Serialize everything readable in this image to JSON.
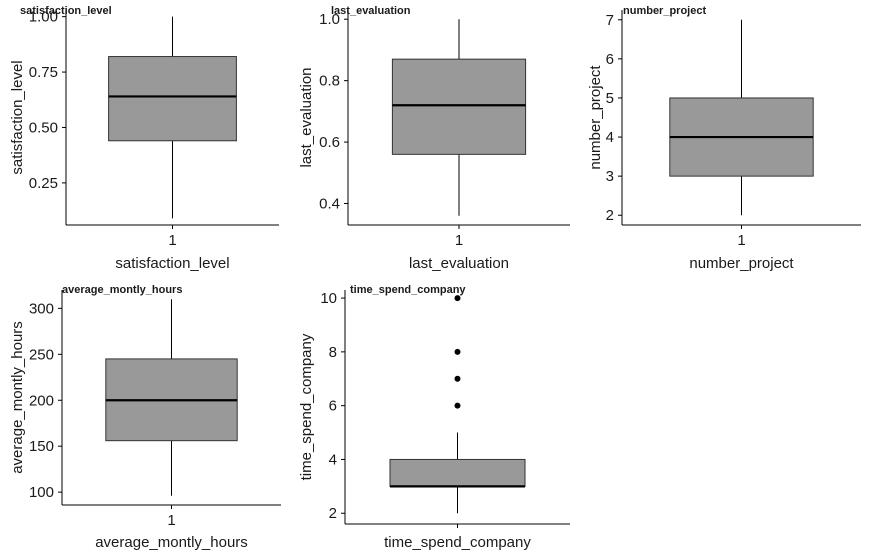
{
  "chart_data": [
    {
      "type": "box",
      "title": "satisfaction_level",
      "xlabel": "satisfaction_level",
      "ylabel": "satisfaction_level",
      "categories": [
        "1"
      ],
      "ylim": [
        0.06,
        1.03
      ],
      "yticks": [
        0.25,
        0.5,
        0.75,
        1.0
      ],
      "ytick_labels": [
        "0.25",
        "0.50",
        "0.75",
        "1.00"
      ],
      "box": {
        "lower_whisker": 0.09,
        "q1": 0.44,
        "median": 0.64,
        "q3": 0.82,
        "upper_whisker": 1.0
      },
      "outliers": []
    },
    {
      "type": "box",
      "title": "last_evaluation",
      "xlabel": "last_evaluation",
      "ylabel": "last_evaluation",
      "categories": [
        "1"
      ],
      "ylim": [
        0.33,
        1.03
      ],
      "yticks": [
        0.4,
        0.6,
        0.8,
        1.0
      ],
      "ytick_labels": [
        "0.4",
        "0.6",
        "0.8",
        "1.0"
      ],
      "box": {
        "lower_whisker": 0.36,
        "q1": 0.56,
        "median": 0.72,
        "q3": 0.87,
        "upper_whisker": 1.0
      },
      "outliers": []
    },
    {
      "type": "box",
      "title": "number_project",
      "xlabel": "number_project",
      "ylabel": "number_project",
      "categories": [
        "1"
      ],
      "ylim": [
        1.75,
        7.25
      ],
      "yticks": [
        2,
        3,
        4,
        5,
        6,
        7
      ],
      "ytick_labels": [
        "2",
        "3",
        "4",
        "5",
        "6",
        "7"
      ],
      "box": {
        "lower_whisker": 2,
        "q1": 3,
        "median": 4,
        "q3": 5,
        "upper_whisker": 7
      },
      "outliers": []
    },
    {
      "type": "box",
      "title": "average_montly_hours",
      "xlabel": "average_montly_hours",
      "ylabel": "average_montly_hours",
      "categories": [
        "1"
      ],
      "ylim": [
        86,
        320
      ],
      "yticks": [
        100,
        150,
        200,
        250,
        300
      ],
      "ytick_labels": [
        "100",
        "150",
        "200",
        "250",
        "300"
      ],
      "box": {
        "lower_whisker": 96,
        "q1": 156,
        "median": 200,
        "q3": 245,
        "upper_whisker": 310
      },
      "outliers": []
    },
    {
      "type": "box",
      "title": "time_spend_company",
      "xlabel": "time_spend_company",
      "ylabel": "time_spend_company",
      "categories": [
        ""
      ],
      "ylim": [
        1.6,
        10.3
      ],
      "yticks": [
        2,
        4,
        6,
        8,
        10
      ],
      "ytick_labels": [
        "2",
        "4",
        "6",
        "8",
        "10"
      ],
      "box": {
        "lower_whisker": 2,
        "q1": 3,
        "median": 3,
        "q3": 4,
        "upper_whisker": 5
      },
      "outliers": [
        6,
        7,
        8,
        10
      ]
    }
  ],
  "colors": {
    "box_fill": "#999999",
    "line": "#000000"
  }
}
